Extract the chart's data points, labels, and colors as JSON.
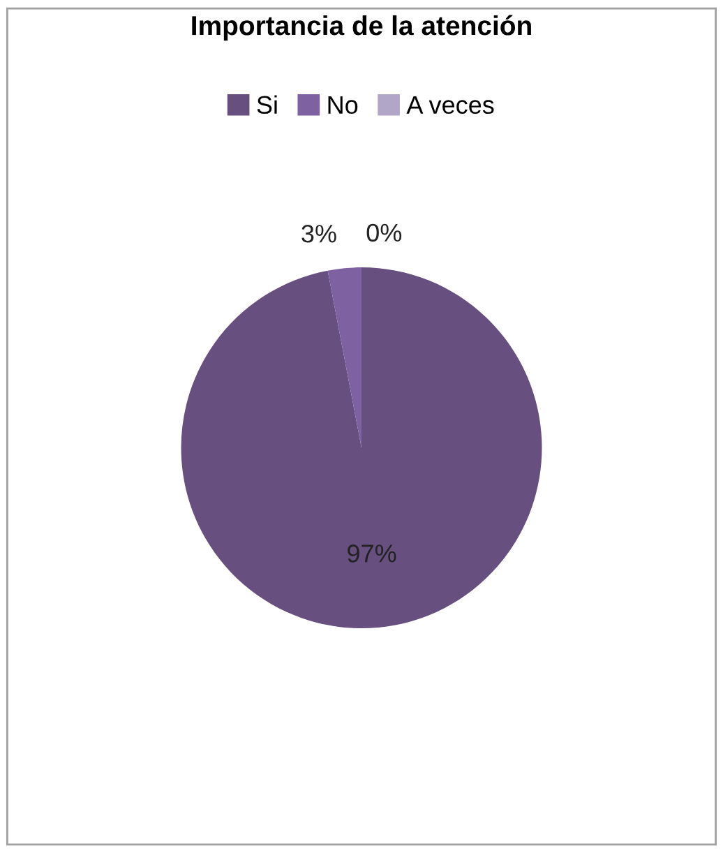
{
  "chart_data": {
    "type": "pie",
    "title": "Importancia de la atención",
    "categories": [
      "Si",
      "No",
      "A veces"
    ],
    "values": [
      97,
      3,
      0
    ],
    "colors": [
      "#674f7f",
      "#7d61a0",
      "#b2a6c8"
    ],
    "value_labels": [
      "97%",
      "3%",
      "0%"
    ],
    "legend": "top"
  }
}
